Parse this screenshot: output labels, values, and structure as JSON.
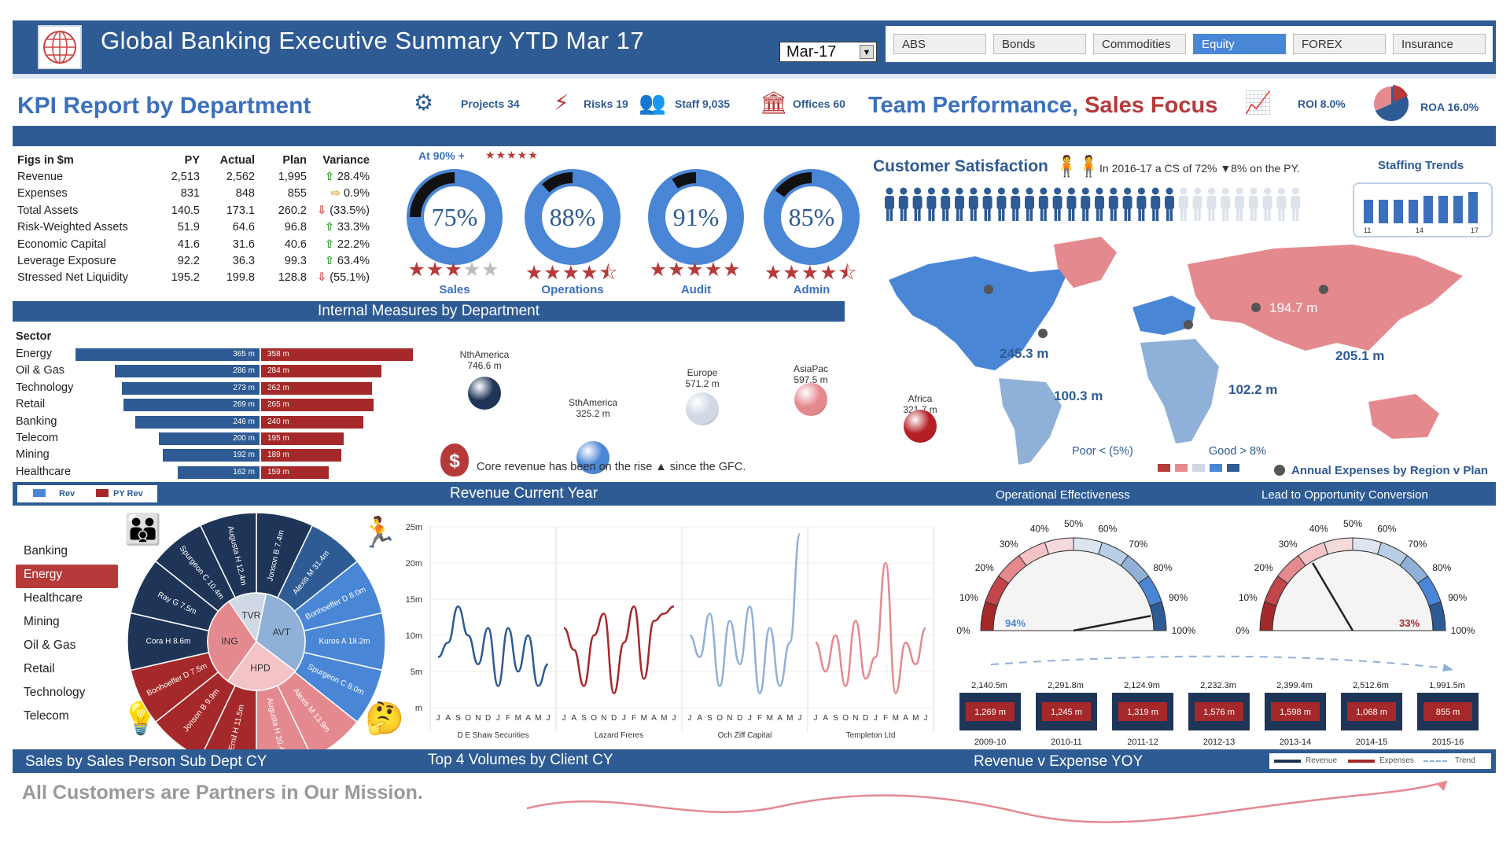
{
  "header": {
    "title": "Global Banking Executive Summary YTD Mar 17",
    "date_selector": "Mar-17",
    "tabs": [
      {
        "label": "ABS",
        "active": false
      },
      {
        "label": "Bonds",
        "active": false
      },
      {
        "label": "Commodities",
        "active": false
      },
      {
        "label": "Equity",
        "active": true
      },
      {
        "label": "FOREX",
        "active": false
      },
      {
        "label": "Insurance",
        "active": false
      }
    ]
  },
  "kpi_band": {
    "title": "KPI Report by Department",
    "items": [
      {
        "label": "Projects 34",
        "icon": "gears-icon"
      },
      {
        "label": "Risks 19",
        "icon": "lightning-icon"
      },
      {
        "label": "Staff 9,035",
        "icon": "people-icon"
      },
      {
        "label": "Offices 60",
        "icon": "bank-icon"
      }
    ],
    "team_title": "Team Performance,",
    "team_title_accent": "Sales Focus",
    "roi": "ROI 8.0%",
    "roa": "ROA 16.0%"
  },
  "figures": {
    "headers": [
      "Figs in $m",
      "PY",
      "Actual",
      "Plan",
      "Variance"
    ],
    "rows": [
      {
        "name": "Revenue",
        "py": "2,513",
        "actual": "2,562",
        "plan": "1,995",
        "variance": "28.4%",
        "dir": "up"
      },
      {
        "name": "Expenses",
        "py": "831",
        "actual": "848",
        "plan": "855",
        "variance": "0.9%",
        "dir": "flat"
      },
      {
        "name": "Total Assets",
        "py": "140.5",
        "actual": "173.1",
        "plan": "260.2",
        "variance": "(33.5%)",
        "dir": "dn"
      },
      {
        "name": "Risk-Weighted Assets",
        "py": "51.9",
        "actual": "64.6",
        "plan": "96.8",
        "variance": "33.3%",
        "dir": "up"
      },
      {
        "name": "Economic Capital",
        "py": "41.6",
        "actual": "31.6",
        "plan": "40.6",
        "variance": "22.2%",
        "dir": "up"
      },
      {
        "name": "Leverage Exposure",
        "py": "92.2",
        "actual": "36.3",
        "plan": "99.3",
        "variance": "63.4%",
        "dir": "up"
      },
      {
        "name": "Stressed Net Liquidity",
        "py": "195.2",
        "actual": "199.8",
        "plan": "128.8",
        "variance": "(55.1%)",
        "dir": "dn"
      }
    ]
  },
  "department_scores": {
    "at90_label": "At 90% +",
    "at90_stars": "★★★★★",
    "items": [
      {
        "name": "Sales",
        "pct": 75,
        "label": "75%",
        "stars": 3
      },
      {
        "name": "Operations",
        "pct": 88,
        "label": "88%",
        "stars": 4.5
      },
      {
        "name": "Audit",
        "pct": 91,
        "label": "91%",
        "stars": 5
      },
      {
        "name": "Admin",
        "pct": 85,
        "label": "85%",
        "stars": 4.5
      }
    ]
  },
  "customer_satisfaction": {
    "title": "Customer Satisfaction",
    "text": "In 2016-17 a CS of 72% ▼8% on the PY.",
    "people_total": 30,
    "people_filled": 21,
    "staffing_title": "Staffing Trends",
    "staffing_values": [
      6,
      6,
      6,
      6,
      7,
      7,
      7,
      8
    ],
    "staffing_ticks": [
      "11",
      "14",
      "17"
    ]
  },
  "internal_measures": {
    "title": "Internal Measures by Department",
    "sector_label": "Sector",
    "rows": [
      {
        "name": "Energy",
        "rev": 365,
        "rev_label": "365 m",
        "py": 358,
        "py_label": "358 m"
      },
      {
        "name": "Oil & Gas",
        "rev": 286,
        "rev_label": "286 m",
        "py": 284,
        "py_label": "284 m"
      },
      {
        "name": "Technology",
        "rev": 273,
        "rev_label": "273 m",
        "py": 262,
        "py_label": "262 m"
      },
      {
        "name": "Retail",
        "rev": 269,
        "rev_label": "269 m",
        "py": 265,
        "py_label": "265 m"
      },
      {
        "name": "Banking",
        "rev": 246,
        "rev_label": "246 m",
        "py": 240,
        "py_label": "240 m"
      },
      {
        "name": "Telecom",
        "rev": 200,
        "rev_label": "200 m",
        "py": 195,
        "py_label": "195 m"
      },
      {
        "name": "Mining",
        "rev": 192,
        "rev_label": "192 m",
        "py": 189,
        "py_label": "189 m"
      },
      {
        "name": "Healthcare",
        "rev": 162,
        "rev_label": "162 m",
        "py": 159,
        "py_label": "159 m"
      }
    ],
    "regions": [
      {
        "name": "NthAmerica",
        "value": "746.6 m",
        "color": "#1e3558"
      },
      {
        "name": "SthAmerica",
        "value": "325.2 m",
        "color": "#4a86d6"
      },
      {
        "name": "Europe",
        "value": "571.2 m",
        "color": "#cfd8e4"
      },
      {
        "name": "AsiaPac",
        "value": "597.5 m",
        "color": "#e48a8f"
      },
      {
        "name": "Africa",
        "value": "321.7 m",
        "color": "#b41f24"
      }
    ],
    "core_text": "Core revenue has been on the rise ▲ since the GFC."
  },
  "map": {
    "labels": [
      "245.3 m",
      "100.3 m",
      "102.2 m",
      "194.7 m",
      "205.1 m"
    ],
    "legend_poor": "Poor < (5%)",
    "legend_good": "Good > 8%",
    "legend_title": "Annual Expenses by Region v Plan"
  },
  "band2": {
    "legend_rev": "Rev",
    "legend_py": "PY Rev",
    "revenue_title": "Revenue Current Year",
    "op_eff": "Operational Effectiveness",
    "lead": "Lead to Opportunity Conversion"
  },
  "sidebar": {
    "items": [
      {
        "label": "Banking",
        "active": false
      },
      {
        "label": "Energy",
        "active": true
      },
      {
        "label": "Healthcare",
        "active": false
      },
      {
        "label": "Mining",
        "active": false
      },
      {
        "label": "Oil & Gas",
        "active": false
      },
      {
        "label": "Retail",
        "active": false
      },
      {
        "label": "Technology",
        "active": false
      },
      {
        "label": "Telecom",
        "active": false
      }
    ]
  },
  "wheel": {
    "inner": [
      "TVR",
      "AVT",
      "ING",
      "HPD"
    ],
    "outer": [
      "Jonson B 7.4m",
      "Alexis M 31.4m",
      "Bonhoeffer D 8.0m",
      "Kuros A 18.2m",
      "Spurgeon C 8.0m",
      "Alexis M 13.9m",
      "Augusta H 20.4m",
      "Emil H 11.5m",
      "Jonson B 9.9m",
      "Bonhoeffer D 7.5m",
      "Cora H 8.6m",
      "Ray G 7.5m",
      "Spurgeon C 10.4m",
      "Augusta H 12.4m"
    ]
  },
  "revenue_chart": {
    "y_ticks": [
      "25m",
      "20m",
      "15m",
      "10m",
      "5m",
      "m"
    ],
    "month_ticks": [
      "J",
      "A",
      "S",
      "O",
      "N",
      "D",
      "J",
      "F",
      "M",
      "A",
      "M",
      "J"
    ],
    "clients": [
      "D E Shaw Securities",
      "Lazard Freres",
      "Och Ziff Capital",
      "Templeton Ltd"
    ],
    "colors": [
      "#2e5b94",
      "#a5292a",
      "#8fb1d8",
      "#e48a8f"
    ]
  },
  "chart_data": [
    {
      "type": "bar",
      "title": "Internal Measures by Department",
      "categories": [
        "Energy",
        "Oil & Gas",
        "Technology",
        "Retail",
        "Banking",
        "Telecom",
        "Mining",
        "Healthcare"
      ],
      "series": [
        {
          "name": "Rev",
          "values": [
            365,
            286,
            273,
            269,
            246,
            200,
            192,
            162
          ]
        },
        {
          "name": "PY Rev",
          "values": [
            358,
            284,
            262,
            265,
            240,
            195,
            189,
            159
          ]
        }
      ]
    },
    {
      "type": "line",
      "title": "Revenue Current Year",
      "x": [
        "J",
        "A",
        "S",
        "O",
        "N",
        "D",
        "J",
        "F",
        "M",
        "A",
        "M",
        "J"
      ],
      "ylim": [
        0,
        25
      ],
      "series": [
        {
          "name": "D E Shaw Securities",
          "values": [
            7,
            9,
            14,
            10,
            6,
            11,
            3,
            11,
            5,
            10,
            3,
            6
          ]
        },
        {
          "name": "Lazard Freres",
          "values": [
            11,
            8,
            3,
            10,
            13,
            2,
            9,
            14,
            4,
            12,
            13,
            14
          ]
        },
        {
          "name": "Och Ziff Capital",
          "values": [
            10,
            7,
            13,
            3,
            12,
            6,
            14,
            2,
            11,
            3,
            9,
            24
          ]
        },
        {
          "name": "Templeton Ltd",
          "values": [
            9,
            5,
            10,
            3,
            12,
            4,
            7,
            20,
            2,
            9,
            6,
            11
          ]
        }
      ]
    },
    {
      "type": "bar",
      "title": "Revenue v Expense YOY",
      "categories": [
        "2009-10",
        "2010-11",
        "2011-12",
        "2012-13",
        "2013-14",
        "2014-15",
        "2015-16"
      ],
      "series": [
        {
          "name": "Revenue",
          "values": [
            2140.5,
            2291.8,
            2124.9,
            2232.3,
            2399.4,
            2512.6,
            1991.5
          ]
        },
        {
          "name": "Expenses",
          "values": [
            1269,
            1245,
            1319,
            1576,
            1598,
            1068,
            855
          ]
        }
      ]
    }
  ],
  "gauges": [
    {
      "value": 94,
      "label": "94%",
      "ticks": [
        "0%",
        "10%",
        "20%",
        "30%",
        "40%",
        "50%",
        "60%",
        "70%",
        "80%",
        "90%",
        "100%"
      ]
    },
    {
      "value": 33,
      "label": "33%",
      "ticks": [
        "0%",
        "10%",
        "20%",
        "30%",
        "40%",
        "50%",
        "60%",
        "70%",
        "80%",
        "90%",
        "100%"
      ]
    }
  ],
  "yoy": {
    "rev_labels": [
      "2,140.5m",
      "2,291.8m",
      "2,124.9m",
      "2,232.3m",
      "2,399.4m",
      "2,512.6m",
      "1,991.5m"
    ],
    "exp_labels": [
      "1,269 m",
      "1,245 m",
      "1,319 m",
      "1,576 m",
      "1,598 m",
      "1,068 m",
      "855 m"
    ],
    "years": [
      "2009-10",
      "2010-11",
      "2011-12",
      "2012-13",
      "2013-14",
      "2014-15",
      "2015-16"
    ]
  },
  "band3": {
    "sales_title": "Sales by Sales Person Sub Dept CY",
    "top4": "Top 4 Volumes by Client CY",
    "rve": "Revenue v Expense YOY",
    "legend": [
      "Revenue",
      "Expenses",
      "Trend"
    ]
  },
  "footer": {
    "text": "All Customers are Partners in Our Mission."
  },
  "colors": {
    "navy": "#2e5b94",
    "red": "#a5292a",
    "blue": "#4a86d6",
    "pink": "#e48a8f"
  }
}
